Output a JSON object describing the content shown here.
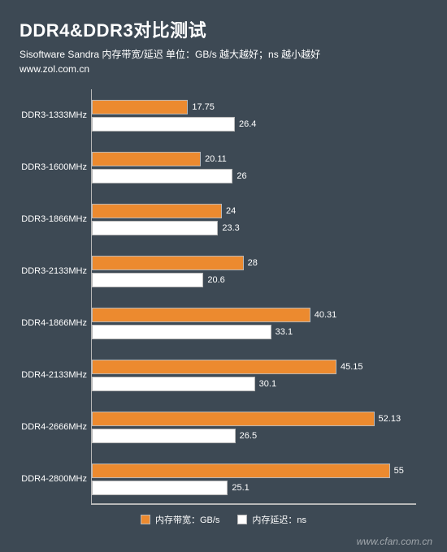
{
  "header": {
    "title": "DDR4&DDR3对比测试",
    "subtitle": "Sisoftware Sandra 内存带宽/延迟    单位：GB/s 越大越好；ns 越小越好",
    "url": "www.zol.com.cn"
  },
  "chart": {
    "type": "grouped-horizontal-bar",
    "background_color": "#3d4954",
    "text_color": "#ffffff",
    "grid_color": "#e0e0e0",
    "border_color": "#b8b8b8",
    "title_fontsize": 22,
    "subtitle_fontsize": 12,
    "axis_label_fontsize": 11,
    "value_fontsize": 11,
    "legend_fontsize": 11,
    "x_max": 60,
    "categories": [
      "DDR3-1333MHz",
      "DDR3-1600MHz",
      "DDR3-1866MHz",
      "DDR3-2133MHz",
      "DDR4-1866MHz",
      "DDR4-2133MHz",
      "DDR4-2666MHz",
      "DDR4-2800MHz"
    ],
    "series": [
      {
        "name": "内存带宽：GB/s",
        "color": "#ec8a2f",
        "border": "#b8b8b8",
        "values": [
          17.75,
          20.11,
          24,
          28,
          40.31,
          45.15,
          52.13,
          55
        ]
      },
      {
        "name": "内存延迟：ns",
        "color": "#ffffff",
        "border": "#b8b8b8",
        "values": [
          26.4,
          26,
          23.3,
          20.6,
          33.1,
          30.1,
          26.5,
          25.1
        ]
      }
    ]
  },
  "watermark": "www.cfan.com.cn"
}
